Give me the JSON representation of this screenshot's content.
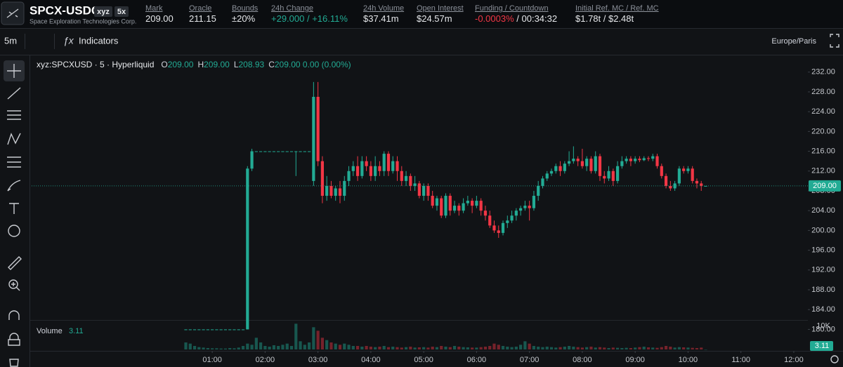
{
  "header": {
    "symbol": "SPCX-USDC",
    "tag": "xyz",
    "leverage": "5x",
    "company": "Space Exploration Technologies Corp.",
    "stats": [
      {
        "label": "Mark",
        "value": "209.00"
      },
      {
        "label": "Oracle",
        "value": "211.15"
      },
      {
        "label": "Bounds",
        "value": "±20%"
      },
      {
        "label": "24h Change",
        "value": "+29.000 / +16.11%"
      },
      {
        "label": "24h Volume",
        "value": "$37.41m"
      },
      {
        "label": "Open Interest",
        "value": "$24.57m"
      },
      {
        "label": "Funding / Countdown",
        "value": "-0.0003%",
        "countdown": " / 00:34:32"
      },
      {
        "label": "Initial Ref. MC / Ref. MC",
        "value": "$1.78t / $2.48t"
      }
    ]
  },
  "toolbar": {
    "interval": "5m",
    "indicators": "Indicators",
    "timezone": "Europe/Paris"
  },
  "chart_data": {
    "type": "candlestick",
    "legend": {
      "symbol": "xyz:SPCXUSD · 5 · Hyperliquid",
      "items": [
        {
          "k": "O",
          "v": "209.00"
        },
        {
          "k": "H",
          "v": "209.00"
        },
        {
          "k": "L",
          "v": "208.93"
        },
        {
          "k": "C",
          "v": "209.00 0.00 (0.00%)"
        }
      ]
    },
    "up_color": "#22ab94",
    "down_color": "#f23645",
    "x": [
      30,
      35,
      40,
      45,
      50,
      55,
      60,
      65,
      70,
      75,
      80,
      85,
      90,
      95,
      100,
      105,
      110,
      115,
      120,
      125,
      130,
      135,
      140,
      145,
      150,
      155,
      160,
      165,
      170,
      175,
      180,
      185,
      190,
      195,
      200,
      205,
      210,
      215,
      220,
      225,
      230,
      235,
      240,
      245,
      250,
      255,
      260,
      265,
      270,
      275,
      280,
      285,
      290,
      295,
      300,
      305,
      310,
      315,
      320,
      325,
      330,
      335,
      340,
      345,
      350,
      355,
      360,
      365,
      370,
      375,
      380,
      385,
      390,
      395,
      400,
      405,
      410,
      415,
      420,
      425,
      430,
      435,
      440,
      445,
      450,
      455,
      460,
      465,
      470,
      475,
      480,
      485,
      490,
      495,
      500,
      505,
      510,
      515,
      520,
      525,
      530,
      535,
      540,
      545,
      550,
      555,
      560,
      565,
      570,
      575,
      580,
      585,
      590,
      595,
      600,
      605,
      610,
      615,
      620
    ],
    "open": [
      180,
      180,
      180,
      180,
      180,
      180,
      180,
      180,
      180,
      180,
      180,
      180,
      180,
      180,
      180,
      212.5,
      216,
      216,
      216,
      216,
      216,
      216,
      216,
      216,
      216,
      216,
      216,
      216,
      216,
      210,
      227,
      214,
      207,
      209,
      207,
      208.5,
      207,
      210,
      212,
      213,
      211,
      214,
      213,
      211,
      213,
      212,
      215.5,
      212,
      214,
      212,
      210,
      211,
      209,
      209.5,
      207,
      209,
      207,
      205,
      206.5,
      203,
      207,
      204,
      205,
      204,
      205.5,
      206,
      205,
      206,
      204,
      203,
      201,
      200,
      199.5,
      201.5,
      202,
      203,
      204,
      204.5,
      205,
      204.5,
      207,
      209,
      210.5,
      211.5,
      212,
      213,
      212,
      213.5,
      214,
      214.5,
      214,
      213,
      214.5,
      212,
      215,
      211,
      210.5,
      212,
      210,
      213,
      214,
      214.5,
      214,
      214.5,
      214.2,
      214.6,
      214.5,
      215,
      213,
      211,
      209,
      208.5,
      209.5,
      212.5,
      212,
      212.5,
      210,
      209.5,
      209
    ],
    "high": [
      180,
      180,
      180,
      180,
      180,
      180,
      180,
      180,
      180,
      180,
      180,
      180,
      180,
      180,
      213,
      216.5,
      216,
      216,
      216,
      216,
      216,
      216,
      216,
      216,
      216,
      216,
      216,
      216,
      216,
      230,
      230,
      215,
      211,
      210,
      209,
      210,
      211,
      213,
      214,
      215,
      215,
      215,
      214,
      215,
      214,
      216,
      216,
      215,
      215,
      213,
      212,
      211.5,
      211,
      210,
      209.5,
      209.5,
      208,
      207,
      207,
      207.5,
      207.5,
      206,
      205.5,
      206.5,
      207,
      206.5,
      207,
      206.5,
      205,
      204,
      202,
      201,
      202,
      203,
      204,
      204.5,
      205,
      206,
      206,
      208,
      210,
      211,
      212,
      212.5,
      213.5,
      214,
      214,
      216,
      217,
      215,
      216.5,
      215,
      215,
      216,
      215.5,
      212,
      213,
      212.5,
      214,
      215,
      215,
      215,
      215,
      215,
      215,
      215,
      215.5,
      215.5,
      213.5,
      211.5,
      210,
      210,
      213,
      213,
      213,
      213,
      210.5,
      210,
      209
    ],
    "low": [
      180,
      180,
      180,
      180,
      180,
      180,
      180,
      180,
      180,
      180,
      180,
      180,
      180,
      180,
      180,
      212,
      216,
      216,
      216,
      216,
      216,
      216,
      216,
      216,
      216,
      211,
      216,
      216,
      216,
      209,
      213,
      205.5,
      206,
      206.5,
      206,
      205.5,
      206,
      209,
      211,
      210,
      210.5,
      212,
      210,
      210,
      211,
      211,
      211,
      211.5,
      210,
      209,
      209,
      208,
      208,
      206.5,
      206,
      206,
      204.5,
      204,
      202.5,
      202.5,
      203,
      203.5,
      203,
      203.5,
      205,
      203.5,
      204.5,
      203,
      202,
      200.5,
      199.5,
      198.5,
      199,
      200.5,
      201.5,
      202,
      203,
      204,
      202,
      204,
      206,
      208.5,
      210,
      211,
      211.5,
      211,
      211.5,
      213,
      213.5,
      213,
      212.5,
      212,
      211.5,
      211.5,
      210,
      209.5,
      210,
      209,
      209.5,
      212.5,
      213.5,
      213,
      213.5,
      213.8,
      214,
      214,
      214,
      212.5,
      210.5,
      208.5,
      208,
      208,
      209,
      211.5,
      211.5,
      209.5,
      208.5,
      208,
      208.93
    ],
    "close": [
      180,
      180,
      180,
      180,
      180,
      180,
      180,
      180,
      180,
      180,
      180,
      180,
      180,
      180,
      212.5,
      216,
      216,
      216,
      216,
      216,
      216,
      216,
      216,
      216,
      216,
      216,
      216,
      216,
      216,
      227,
      214,
      207,
      209,
      207,
      208.5,
      207,
      210,
      212,
      213,
      211,
      214,
      213,
      211,
      213,
      212,
      215.5,
      212,
      214,
      212,
      210,
      211,
      209,
      209.5,
      207,
      209,
      207,
      205,
      206.5,
      203,
      207,
      204,
      205,
      204,
      205.5,
      206,
      205,
      206,
      204,
      203,
      201,
      200,
      199.5,
      201.5,
      202,
      203,
      204,
      204.5,
      205,
      204.5,
      207,
      209,
      210.5,
      211.5,
      212,
      213,
      212,
      213.5,
      214,
      214.5,
      214,
      213,
      214.5,
      212,
      215,
      211,
      210.5,
      212,
      210,
      213,
      214,
      214.5,
      214,
      214.5,
      214.2,
      214.6,
      214.5,
      215,
      213,
      211,
      209,
      208.5,
      209.5,
      212.5,
      212,
      212.5,
      210,
      209.5,
      209,
      209
    ],
    "volume_label": "Volume",
    "volume": [
      3000,
      2500,
      1500,
      1000,
      800,
      600,
      500,
      500,
      400,
      400,
      600,
      500,
      800,
      1500,
      2500,
      2000,
      5000,
      3000,
      1500,
      1200,
      1800,
      1500,
      2000,
      2500,
      1500,
      11000,
      3500,
      2000,
      3000,
      9500,
      8000,
      5000,
      4000,
      3000,
      2500,
      2000,
      2500,
      2000,
      1500,
      1500,
      1200,
      1500,
      1200,
      1000,
      1200,
      1500,
      1000,
      1200,
      1000,
      800,
      1000,
      1200,
      800,
      900,
      1000,
      800,
      1200,
      1000,
      1500,
      1200,
      1000,
      1500,
      1200,
      1000,
      900,
      800,
      800,
      1000,
      1200,
      1500,
      2500,
      2000,
      1500,
      1200,
      1000,
      1200,
      2000,
      3500,
      2500,
      1500,
      1200,
      1000,
      1200,
      1000,
      800,
      1000,
      1200,
      1500,
      1200,
      1000,
      800,
      1000,
      1200,
      800,
      1000,
      800,
      600,
      800,
      700,
      600,
      700,
      600,
      800,
      1000,
      1200,
      900,
      800,
      700,
      1000,
      1500,
      1200,
      800,
      1000,
      900,
      800,
      700,
      600,
      800,
      3.11
    ],
    "vlim": [
      0,
      12000
    ],
    "vticks": [
      {
        "value": 10000,
        "label": "10K"
      }
    ],
    "last_price": {
      "value": 209,
      "label": "209.00"
    },
    "xlim": [
      -145,
      736
    ],
    "xticks": [
      {
        "value": 60,
        "label": "01:00"
      },
      {
        "value": 120,
        "label": "02:00"
      },
      {
        "value": 180,
        "label": "03:00"
      },
      {
        "value": 240,
        "label": "04:00"
      },
      {
        "value": 300,
        "label": "05:00"
      },
      {
        "value": 360,
        "label": "06:00"
      },
      {
        "value": 420,
        "label": "07:00"
      },
      {
        "value": 480,
        "label": "08:00"
      },
      {
        "value": 540,
        "label": "09:00"
      },
      {
        "value": 600,
        "label": "10:00"
      },
      {
        "value": 660,
        "label": "11:00"
      },
      {
        "value": 720,
        "label": "12:00"
      }
    ],
    "ylim": [
      178.5,
      234.8
    ],
    "yticks": [
      {
        "value": 180,
        "label": "180.00"
      },
      {
        "value": 184,
        "label": "184.00"
      },
      {
        "value": 188,
        "label": "188.00"
      },
      {
        "value": 192,
        "label": "192.00"
      },
      {
        "value": 196,
        "label": "196.00"
      },
      {
        "value": 200,
        "label": "200.00"
      },
      {
        "value": 204,
        "label": "204.00"
      },
      {
        "value": 208,
        "label": "208.00"
      },
      {
        "value": 212,
        "label": "212.00"
      },
      {
        "value": 216,
        "label": "216.00"
      },
      {
        "value": 220,
        "label": "220.00"
      },
      {
        "value": 224,
        "label": "224.00"
      },
      {
        "value": 228,
        "label": "228.00"
      },
      {
        "value": 232,
        "label": "232.00"
      }
    ],
    "grid": false
  }
}
